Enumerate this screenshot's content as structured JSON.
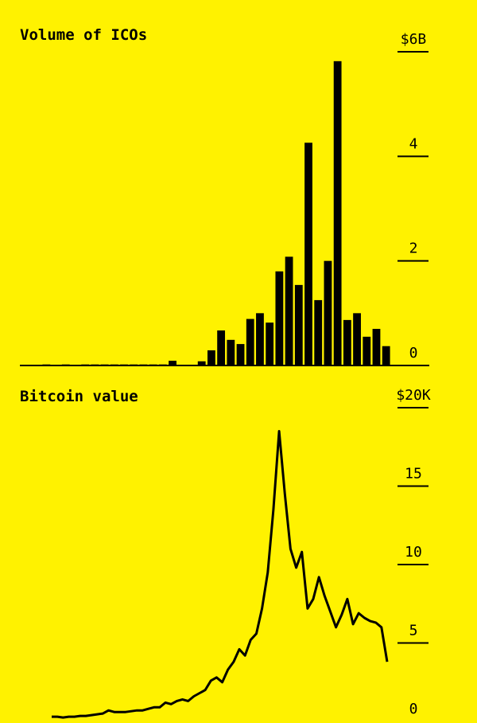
{
  "chart_data": [
    {
      "type": "bar",
      "title": "Volume of ICOs",
      "color": "#000000",
      "categories": [
        null,
        null,
        null,
        null,
        null,
        null,
        null,
        null,
        null,
        null,
        null,
        null,
        null,
        null,
        null,
        null,
        null,
        null,
        null,
        null,
        null,
        null,
        null,
        null,
        null,
        null,
        null,
        null,
        null,
        null,
        null,
        null,
        null,
        null,
        null,
        null,
        null,
        null
      ],
      "values": [
        0,
        0,
        0.02,
        0,
        0.02,
        0,
        0.02,
        0.02,
        0.02,
        0.02,
        0.02,
        0.02,
        0.02,
        0.02,
        0.02,
        0.09,
        0.01,
        0.01,
        0.08,
        0.29,
        0.67,
        0.49,
        0.41,
        0.89,
        1.0,
        0.82,
        1.8,
        2.08,
        1.54,
        4.26,
        1.25,
        2.0,
        5.82,
        0.87,
        1.0,
        0.55,
        0.7,
        0.37
      ],
      "ylim": [
        0,
        6
      ],
      "yticks": [
        {
          "value": 6,
          "label": "$6B"
        },
        4,
        2,
        0
      ]
    },
    {
      "type": "line",
      "title": "Bitcoin value",
      "color": "#000000",
      "categories": [
        null,
        null,
        null,
        null,
        null,
        null,
        null,
        null,
        null,
        null,
        null,
        null,
        null,
        null,
        null,
        null,
        null,
        null,
        null,
        null,
        null,
        null,
        null,
        null,
        null,
        null,
        null,
        null,
        null,
        null,
        null,
        null,
        null,
        null,
        null,
        null,
        null,
        null,
        null,
        null,
        null,
        null,
        null,
        null,
        null,
        null,
        null,
        null,
        null,
        null,
        null,
        null,
        null,
        null,
        null,
        null,
        null,
        null,
        null,
        null
      ],
      "values": [
        0.3,
        0.3,
        0.25,
        0.3,
        0.3,
        0.35,
        0.35,
        0.4,
        0.45,
        0.5,
        0.7,
        0.6,
        0.6,
        0.6,
        0.65,
        0.7,
        0.7,
        0.8,
        0.9,
        0.9,
        1.2,
        1.1,
        1.3,
        1.4,
        1.3,
        1.6,
        1.8,
        2.0,
        2.6,
        2.8,
        2.5,
        3.3,
        3.8,
        4.6,
        4.2,
        5.2,
        5.6,
        7.2,
        9.5,
        13.5,
        18.5,
        14.5,
        11.0,
        9.8,
        10.8,
        7.2,
        7.8,
        9.2,
        8.0,
        7.0,
        6.0,
        6.8,
        7.8,
        6.2,
        6.9,
        6.6,
        6.4,
        6.3,
        6.0,
        3.8
      ],
      "ylim": [
        0,
        20
      ],
      "yticks": [
        {
          "value": 20,
          "label": "$20K"
        },
        15,
        10,
        5,
        0
      ]
    }
  ]
}
